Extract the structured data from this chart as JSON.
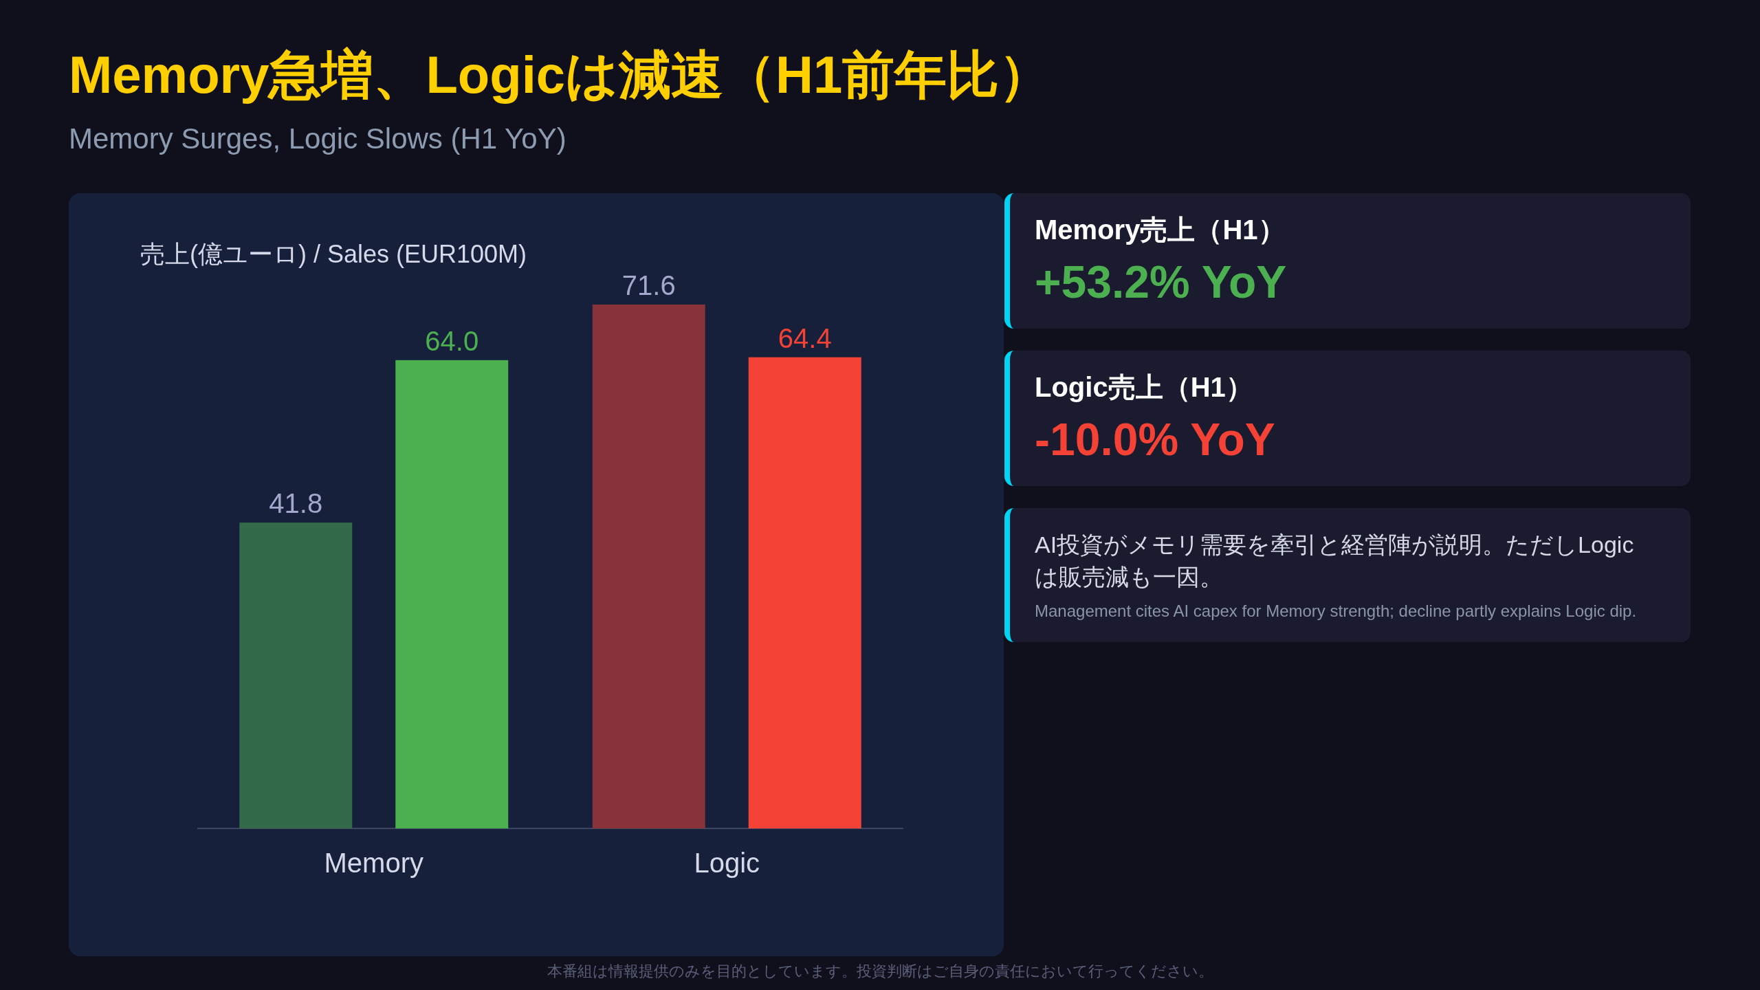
{
  "chart_data": [
    {
      "type": "bar",
      "title": "Memory急増、Logicは減速（H1前年比）",
      "subtitle": "Memory Surges, Logic Slows (H1 YoY)",
      "ylabel": "売上(億ユーロ) / Sales (EUR100M)",
      "categories": [
        "Memory",
        "Logic"
      ],
      "series": [
        {
          "colors": [
            "#336b4a",
            "#88323a"
          ],
          "values": [
            41.8,
            71.6
          ],
          "value_labels": [
            "41.8",
            "71.6"
          ]
        },
        {
          "colors": [
            "#4caf50",
            "#f44336"
          ],
          "values": [
            64.0,
            64.4
          ],
          "value_labels": [
            "64.0",
            "64.4"
          ]
        }
      ],
      "tick_labels": "x",
      "annotations": [
        "本番組は情報提供のみを目的としています。投資判断はご自身の責任において行ってください。"
      ]
    },
    {
      "type": "other",
      "title": "Memory売上（H1）",
      "annotations": [
        "+53.2% YoY"
      ],
      "color": "#4caf50"
    },
    {
      "type": "other",
      "title": "Logic売上（H1）",
      "annotations": [
        "-10.0% YoY"
      ],
      "color": "#f44336"
    },
    {
      "type": "other",
      "annotations": [
        "AI投資がメモリ需要を牽引と経営陣が説明。ただしLogicは販売減も一因。",
        "Management cites AI capex for Memory strength; decline partly explains Logic dip."
      ]
    }
  ]
}
